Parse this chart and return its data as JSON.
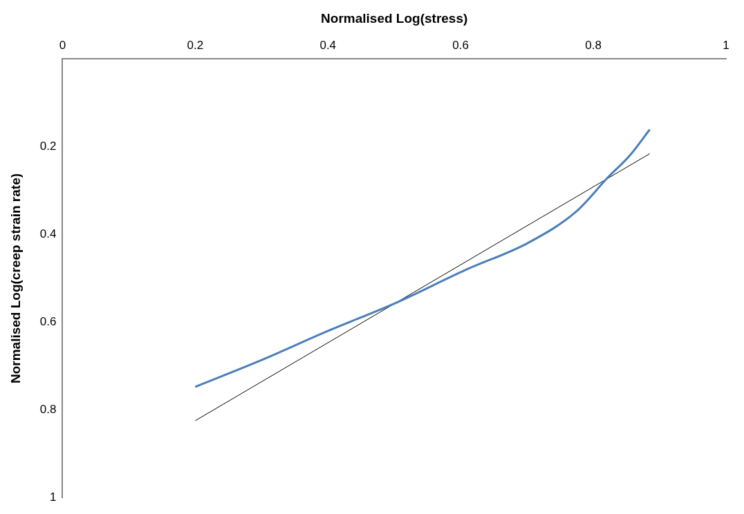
{
  "chart_data": {
    "type": "line",
    "xlabel": "Normalised Log(stress)",
    "ylabel": "Normalised Log(creep strain rate)",
    "xlim": [
      0,
      1
    ],
    "ylim": [
      1,
      0
    ],
    "xticks": [
      0,
      0.2,
      0.4,
      0.6,
      0.8,
      1
    ],
    "yticks": [
      0.2,
      0.4,
      0.6,
      0.8,
      1
    ],
    "grid": false,
    "legend": false,
    "marker": "none",
    "series": [
      {
        "color": "#4a7ebb",
        "x": [
          0.2,
          0.3,
          0.396,
          0.502,
          0.607,
          0.703,
          0.774,
          0.822,
          0.855,
          0.885
        ],
        "values": [
          0.747,
          0.686,
          0.622,
          0.556,
          0.481,
          0.418,
          0.348,
          0.27,
          0.22,
          0.161
        ]
      },
      {
        "color": "#000000",
        "x": [
          0.2,
          0.885
        ],
        "values": [
          0.824,
          0.216
        ]
      }
    ]
  }
}
